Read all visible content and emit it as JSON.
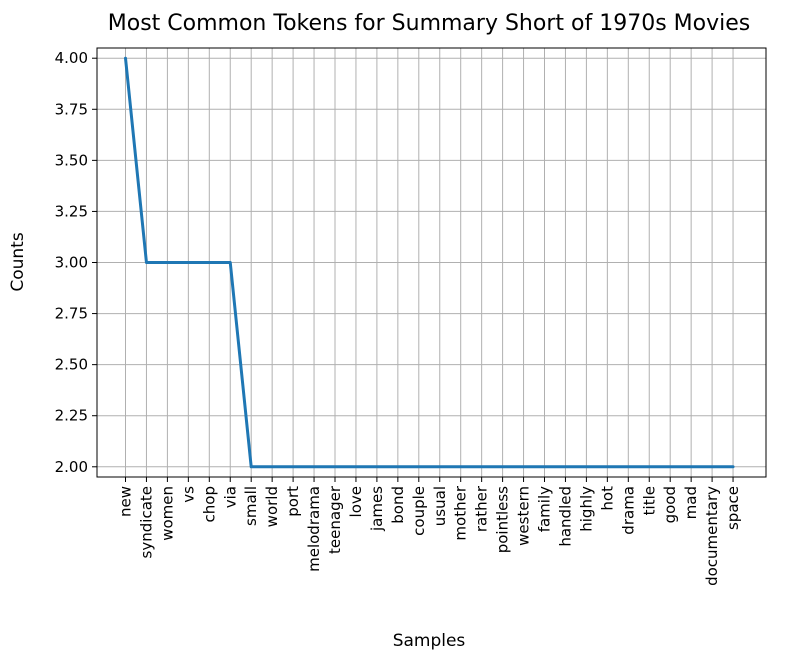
{
  "chart_data": {
    "type": "line",
    "title": "Most Common Tokens for Summary Short of 1970s Movies",
    "xlabel": "Samples",
    "ylabel": "Counts",
    "categories": [
      "new",
      "syndicate",
      "women",
      "vs",
      "chop",
      "via",
      "small",
      "world",
      "port",
      "melodrama",
      "teenager",
      "love",
      "james",
      "bond",
      "couple",
      "usual",
      "mother",
      "rather",
      "pointless",
      "western",
      "family",
      "handled",
      "highly",
      "hot",
      "drama",
      "title",
      "good",
      "mad",
      "documentary",
      "space"
    ],
    "values": [
      4,
      3,
      3,
      3,
      3,
      3,
      2,
      2,
      2,
      2,
      2,
      2,
      2,
      2,
      2,
      2,
      2,
      2,
      2,
      2,
      2,
      2,
      2,
      2,
      2,
      2,
      2,
      2,
      2,
      2
    ],
    "ylim": [
      1.95,
      4.05
    ],
    "yticks": [
      2.0,
      2.25,
      2.5,
      2.75,
      3.0,
      3.25,
      3.5,
      3.75,
      4.0
    ],
    "ytick_labels": [
      "2.00",
      "2.25",
      "2.50",
      "2.75",
      "3.00",
      "3.25",
      "3.50",
      "3.75",
      "4.00"
    ],
    "grid": true,
    "line_color": "#1f77b4"
  }
}
